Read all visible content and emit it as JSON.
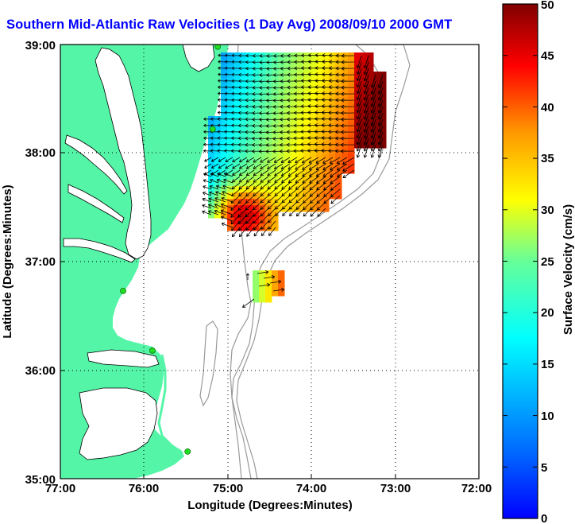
{
  "map": {
    "title": "Southern Mid-Atlantic Raw Velocities (1 Day Avg) 2008/09/10 2000 GMT",
    "xlabel": "Longitude (Degrees:Minutes)",
    "ylabel": "Latitude (Degrees:Minutes)",
    "x_ticks": [
      "77:00",
      "76:00",
      "75:00",
      "74:00",
      "73:00",
      "72:00"
    ],
    "y_ticks": [
      "35:00",
      "36:00",
      "37:00",
      "38:00",
      "39:00"
    ],
    "lon_range": [
      -77,
      -72
    ],
    "lat_range": [
      35,
      39
    ],
    "land_color": "#55f5a8",
    "station_color": "#22dd22",
    "stations": [
      {
        "lon": -75.12,
        "lat": 38.98
      },
      {
        "lon": -75.18,
        "lat": 38.22
      },
      {
        "lon": -76.25,
        "lat": 36.73
      },
      {
        "lon": -75.9,
        "lat": 36.18
      },
      {
        "lon": -75.48,
        "lat": 35.25
      }
    ]
  },
  "colorbar": {
    "label": "Surface Velocity (cm/s)",
    "ticks": [
      "0",
      "5",
      "10",
      "15",
      "20",
      "25",
      "30",
      "35",
      "40",
      "45",
      "50"
    ],
    "min": 0,
    "max": 50,
    "colormap": "jet"
  }
}
